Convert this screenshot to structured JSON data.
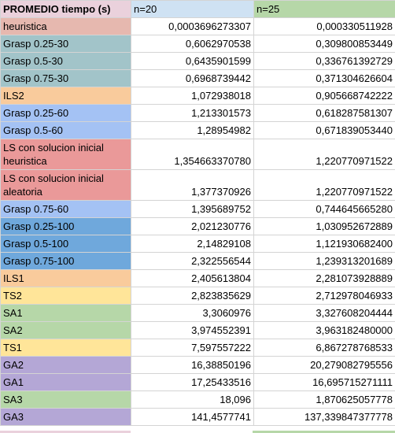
{
  "header": {
    "label": "PROMEDIO tiempo (s)",
    "col_n20": "n=20",
    "col_n25": "n=25",
    "colors": {
      "label": "#ead1dc",
      "n20": "#cfe2f3",
      "n25": "#b6d7a8"
    }
  },
  "rows": [
    {
      "name": "heuristica",
      "n20": "0,0003696273307",
      "n25": "0,000330511928",
      "color": "#e6b8af"
    },
    {
      "name": "Grasp 0.25-30",
      "n20": "0,6062970538",
      "n25": "0,309800853449",
      "color": "#a2c4c9"
    },
    {
      "name": "Grasp 0.5-30",
      "n20": "0,6435901599",
      "n25": "0,336761392729",
      "color": "#a2c4c9"
    },
    {
      "name": "Grasp 0.75-30",
      "n20": "0,6968739442",
      "n25": "0,371304626604",
      "color": "#a2c4c9"
    },
    {
      "name": "ILS2",
      "n20": "1,072938018",
      "n25": "0,905668742222",
      "color": "#f9cb9c"
    },
    {
      "name": "Grasp 0.25-60",
      "n20": "1,213301573",
      "n25": "0,618287581307",
      "color": "#a4c2f4"
    },
    {
      "name": "Grasp 0.5-60",
      "n20": "1,28954982",
      "n25": "0,671839053440",
      "color": "#a4c2f4"
    },
    {
      "name": "LS con solucion inicial heuristica",
      "n20": "1,354663370780",
      "n25": "1,220770971522",
      "color": "#ea9999"
    },
    {
      "name": "LS con solucion inicial aleatoria",
      "n20": "1,377370926",
      "n25": "1,220770971522",
      "color": "#ea9999"
    },
    {
      "name": "Grasp 0.75-60",
      "n20": "1,395689752",
      "n25": "0,744645665280",
      "color": "#a4c2f4"
    },
    {
      "name": "Grasp 0.25-100",
      "n20": "2,021230776",
      "n25": "1,030952672889",
      "color": "#6fa8dc"
    },
    {
      "name": "Grasp 0.5-100",
      "n20": "2,14829108",
      "n25": "1,121930682400",
      "color": "#6fa8dc"
    },
    {
      "name": "Grasp 0.75-100",
      "n20": "2,322556544",
      "n25": "1,239313201689",
      "color": "#6fa8dc"
    },
    {
      "name": "ILS1",
      "n20": "2,405613804",
      "n25": "2,281073928889",
      "color": "#f9cb9c"
    },
    {
      "name": "TS2",
      "n20": "2,823835629",
      "n25": "2,712978046933",
      "color": "#ffe599"
    },
    {
      "name": "SA1",
      "n20": "3,3060976",
      "n25": "3,327608204444",
      "color": "#b6d7a8"
    },
    {
      "name": "SA2",
      "n20": "3,974552391",
      "n25": "3,963182480000",
      "color": "#b6d7a8"
    },
    {
      "name": "TS1",
      "n20": "7,597557222",
      "n25": "6,867278768533",
      "color": "#ffe599"
    },
    {
      "name": "GA2",
      "n20": "16,38850196",
      "n25": "20,279082795556",
      "color": "#b4a7d6"
    },
    {
      "name": "GA1",
      "n20": "17,25433516",
      "n25": "16,695715271111",
      "color": "#b4a7d6"
    },
    {
      "name": "SA3",
      "n20": "18,096",
      "n25": "1,870625057778",
      "color": "#b6d7a8"
    },
    {
      "name": "GA3",
      "n20": "141,4577741",
      "n25": "137,339847377778",
      "color": "#b4a7d6"
    }
  ]
}
